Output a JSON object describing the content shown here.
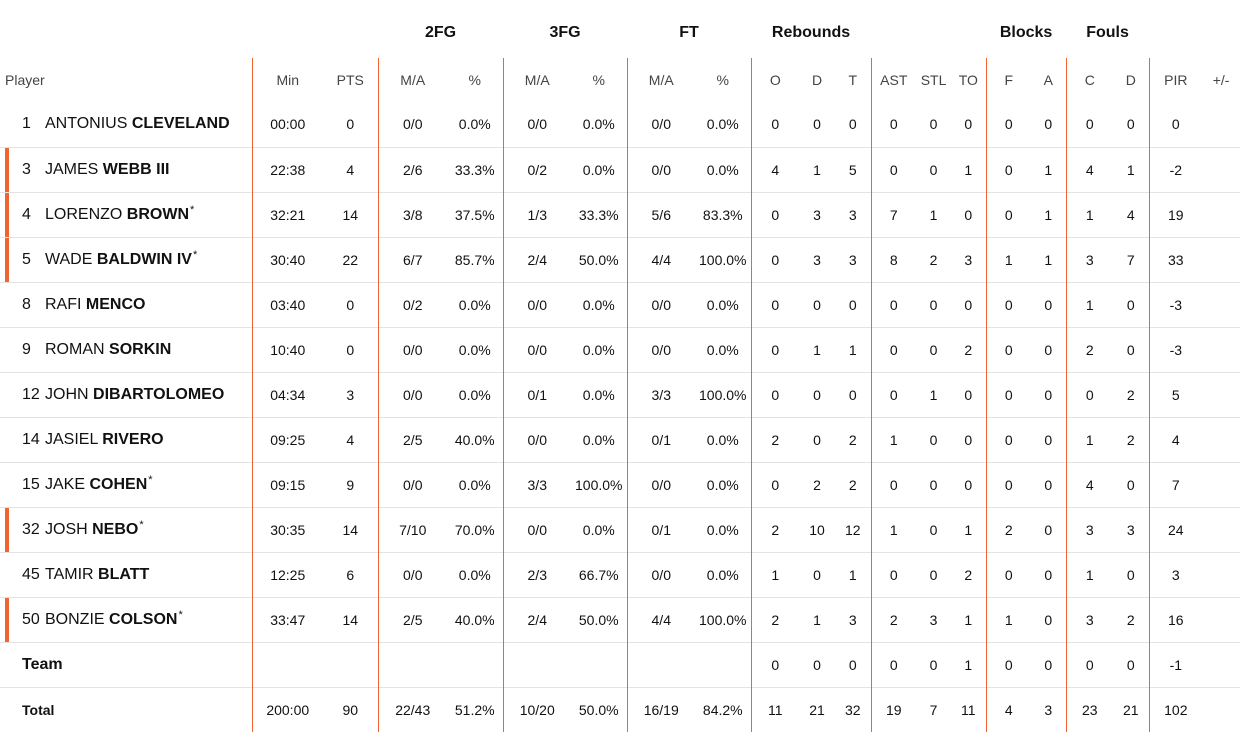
{
  "groups": [
    "2FG",
    "3FG",
    "FT",
    "Rebounds",
    "Blocks",
    "Fouls"
  ],
  "columns": {
    "player": "Player",
    "min": "Min",
    "pts": "PTS",
    "fg2_ma": "M/A",
    "fg2_pct": "%",
    "fg3_ma": "M/A",
    "fg3_pct": "%",
    "ft_ma": "M/A",
    "ft_pct": "%",
    "reb_o": "O",
    "reb_d": "D",
    "reb_t": "T",
    "ast": "AST",
    "stl": "STL",
    "to": "TO",
    "blk_f": "F",
    "blk_a": "A",
    "foul_c": "C",
    "foul_d": "D",
    "pir": "PIR",
    "pm": "+/-"
  },
  "accent_color": "#f0652f",
  "players": [
    {
      "num": "1",
      "first": "ANTONIUS",
      "last": "CLEVELAND",
      "star": "",
      "bar": false,
      "stats": [
        "00:00",
        "0",
        "0/0",
        "0.0%",
        "0/0",
        "0.0%",
        "0/0",
        "0.0%",
        "0",
        "0",
        "0",
        "0",
        "0",
        "0",
        "0",
        "0",
        "0",
        "0",
        "0",
        ""
      ]
    },
    {
      "num": "3",
      "first": "JAMES",
      "last": "WEBB III",
      "star": "",
      "bar": true,
      "stats": [
        "22:38",
        "4",
        "2/6",
        "33.3%",
        "0/2",
        "0.0%",
        "0/0",
        "0.0%",
        "4",
        "1",
        "5",
        "0",
        "0",
        "1",
        "0",
        "1",
        "4",
        "1",
        "-2",
        ""
      ]
    },
    {
      "num": "4",
      "first": "LORENZO",
      "last": "BROWN",
      "star": "*",
      "bar": true,
      "stats": [
        "32:21",
        "14",
        "3/8",
        "37.5%",
        "1/3",
        "33.3%",
        "5/6",
        "83.3%",
        "0",
        "3",
        "3",
        "7",
        "1",
        "0",
        "0",
        "1",
        "1",
        "4",
        "19",
        ""
      ]
    },
    {
      "num": "5",
      "first": "WADE",
      "last": "BALDWIN IV",
      "star": "*",
      "bar": true,
      "stats": [
        "30:40",
        "22",
        "6/7",
        "85.7%",
        "2/4",
        "50.0%",
        "4/4",
        "100.0%",
        "0",
        "3",
        "3",
        "8",
        "2",
        "3",
        "1",
        "1",
        "3",
        "7",
        "33",
        ""
      ]
    },
    {
      "num": "8",
      "first": "RAFI",
      "last": "MENCO",
      "star": "",
      "bar": false,
      "stats": [
        "03:40",
        "0",
        "0/2",
        "0.0%",
        "0/0",
        "0.0%",
        "0/0",
        "0.0%",
        "0",
        "0",
        "0",
        "0",
        "0",
        "0",
        "0",
        "0",
        "1",
        "0",
        "-3",
        ""
      ]
    },
    {
      "num": "9",
      "first": "ROMAN",
      "last": "SORKIN",
      "star": "",
      "bar": false,
      "stats": [
        "10:40",
        "0",
        "0/0",
        "0.0%",
        "0/0",
        "0.0%",
        "0/0",
        "0.0%",
        "0",
        "1",
        "1",
        "0",
        "0",
        "2",
        "0",
        "0",
        "2",
        "0",
        "-3",
        ""
      ]
    },
    {
      "num": "12",
      "first": "JOHN",
      "last": "DIBARTOLOMEO",
      "star": "",
      "bar": false,
      "stats": [
        "04:34",
        "3",
        "0/0",
        "0.0%",
        "0/1",
        "0.0%",
        "3/3",
        "100.0%",
        "0",
        "0",
        "0",
        "0",
        "1",
        "0",
        "0",
        "0",
        "0",
        "2",
        "5",
        ""
      ]
    },
    {
      "num": "14",
      "first": "JASIEL",
      "last": "RIVERO",
      "star": "",
      "bar": false,
      "stats": [
        "09:25",
        "4",
        "2/5",
        "40.0%",
        "0/0",
        "0.0%",
        "0/1",
        "0.0%",
        "2",
        "0",
        "2",
        "1",
        "0",
        "0",
        "0",
        "0",
        "1",
        "2",
        "4",
        ""
      ]
    },
    {
      "num": "15",
      "first": "JAKE",
      "last": "COHEN",
      "star": "*",
      "bar": false,
      "stats": [
        "09:15",
        "9",
        "0/0",
        "0.0%",
        "3/3",
        "100.0%",
        "0/0",
        "0.0%",
        "0",
        "2",
        "2",
        "0",
        "0",
        "0",
        "0",
        "0",
        "4",
        "0",
        "7",
        ""
      ]
    },
    {
      "num": "32",
      "first": "JOSH",
      "last": "NEBO",
      "star": "*",
      "bar": true,
      "stats": [
        "30:35",
        "14",
        "7/10",
        "70.0%",
        "0/0",
        "0.0%",
        "0/1",
        "0.0%",
        "2",
        "10",
        "12",
        "1",
        "0",
        "1",
        "2",
        "0",
        "3",
        "3",
        "24",
        ""
      ]
    },
    {
      "num": "45",
      "first": "TAMIR",
      "last": "BLATT",
      "star": "",
      "bar": false,
      "stats": [
        "12:25",
        "6",
        "0/0",
        "0.0%",
        "2/3",
        "66.7%",
        "0/0",
        "0.0%",
        "1",
        "0",
        "1",
        "0",
        "0",
        "2",
        "0",
        "0",
        "1",
        "0",
        "3",
        ""
      ]
    },
    {
      "num": "50",
      "first": "BONZIE",
      "last": "COLSON",
      "star": "*",
      "bar": true,
      "stats": [
        "33:47",
        "14",
        "2/5",
        "40.0%",
        "2/4",
        "50.0%",
        "4/4",
        "100.0%",
        "2",
        "1",
        "3",
        "2",
        "3",
        "1",
        "1",
        "0",
        "3",
        "2",
        "16",
        ""
      ]
    }
  ],
  "team": {
    "label": "Team",
    "stats": [
      "",
      "",
      "",
      "",
      "",
      "",
      "",
      "",
      "0",
      "0",
      "0",
      "0",
      "0",
      "1",
      "0",
      "0",
      "0",
      "0",
      "-1",
      ""
    ]
  },
  "total": {
    "label": "Total",
    "stats": [
      "200:00",
      "90",
      "22/43",
      "51.2%",
      "10/20",
      "50.0%",
      "16/19",
      "84.2%",
      "11",
      "21",
      "32",
      "19",
      "7",
      "11",
      "4",
      "3",
      "23",
      "21",
      "102",
      ""
    ]
  }
}
